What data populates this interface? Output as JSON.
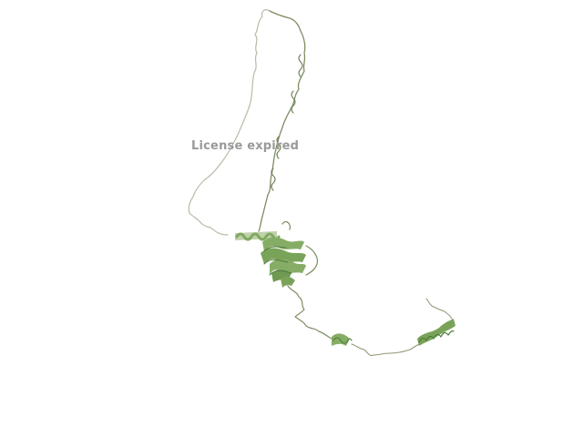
{
  "viewer": {
    "watermark_text": "License expired",
    "background_color": "#ffffff",
    "watermark_color": "#9a9a9a"
  },
  "structure": {
    "representation": "cartoon",
    "coil_color": "#9aa882",
    "helix_color": "#7fa860",
    "helix_dark_color": "#4f7a3a"
  }
}
